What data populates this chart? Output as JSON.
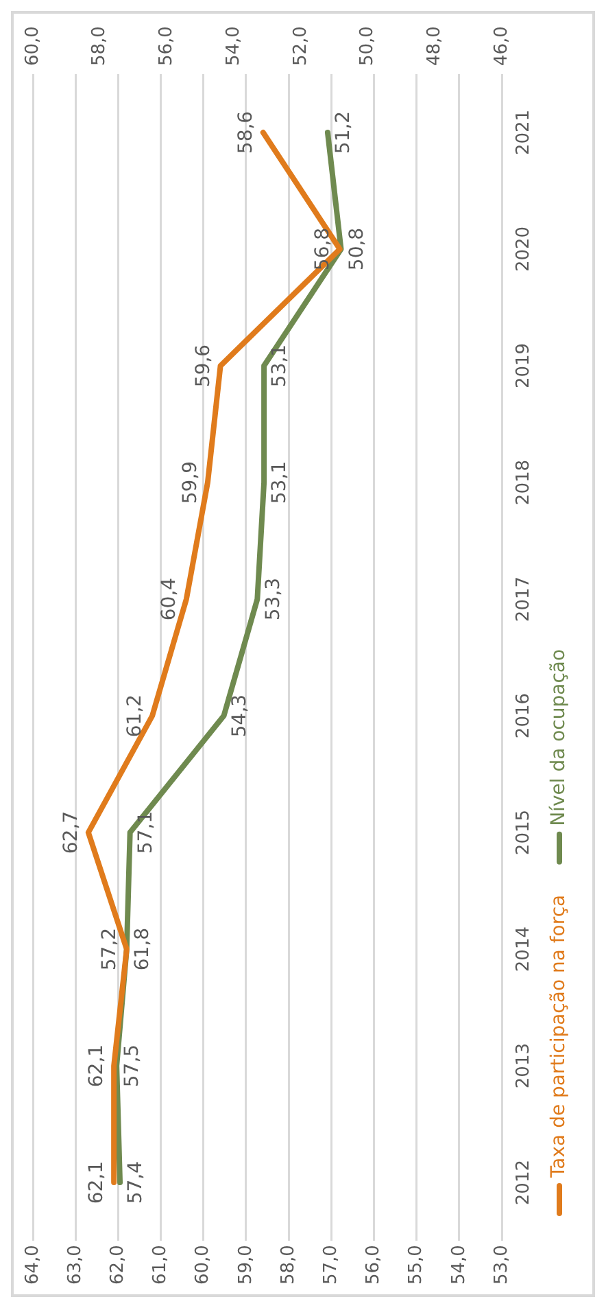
{
  "chart_data": {
    "type": "line",
    "orientation": "horizontal",
    "categories": [
      "2021",
      "2020",
      "2019",
      "2018",
      "2017",
      "2016",
      "2015",
      "2014",
      "2013",
      "2012"
    ],
    "series": [
      {
        "name": "Taxa de participação na força",
        "color": "#e07b1c",
        "values": [
          58.6,
          56.8,
          59.6,
          59.9,
          60.4,
          61.2,
          62.7,
          61.8,
          62.1,
          62.1
        ],
        "value_labels": [
          "58,6",
          "56,8",
          "59,6",
          "59,9",
          "60,4",
          "61,2",
          "62,7",
          "61,8",
          "62,1",
          "62,1"
        ]
      },
      {
        "name": "Nível da ocupação",
        "color": "#6f8a4f",
        "axis": "x2",
        "values": [
          51.2,
          50.8,
          53.1,
          53.1,
          53.3,
          54.3,
          57.1,
          57.2,
          57.5,
          57.4
        ],
        "value_labels": [
          "51,2",
          "50,8",
          "53,1",
          "53,1",
          "53,3",
          "54,3",
          "57,1",
          "57,2",
          "57,5",
          "57,4"
        ]
      }
    ],
    "xlim": [
      64,
      53
    ],
    "xticks": [
      {
        "value": 64,
        "label": "64,0"
      },
      {
        "value": 63,
        "label": "63,0"
      },
      {
        "value": 62,
        "label": "62,0"
      },
      {
        "value": 61,
        "label": "61,0"
      },
      {
        "value": 60,
        "label": "60,0"
      },
      {
        "value": 59,
        "label": "59,0"
      },
      {
        "value": 58,
        "label": "58,0"
      },
      {
        "value": 57,
        "label": "57,0"
      },
      {
        "value": 56,
        "label": "56,0"
      },
      {
        "value": 55,
        "label": "55,0"
      },
      {
        "value": 54,
        "label": "54,0"
      },
      {
        "value": 53,
        "label": "53,0"
      }
    ],
    "x2lim": [
      60,
      46
    ],
    "x2ticks": [
      {
        "value": 60,
        "label": "60,0"
      },
      {
        "value": 58,
        "label": "58,0"
      },
      {
        "value": 56,
        "label": "56,0"
      },
      {
        "value": 54,
        "label": "54,0"
      },
      {
        "value": 52,
        "label": "52,0"
      },
      {
        "value": 50,
        "label": "50,0"
      },
      {
        "value": 48,
        "label": "48,0"
      },
      {
        "value": 46,
        "label": "46,0"
      }
    ],
    "grid": "x",
    "legend": "right",
    "marker": "none",
    "line_style": "solid"
  }
}
